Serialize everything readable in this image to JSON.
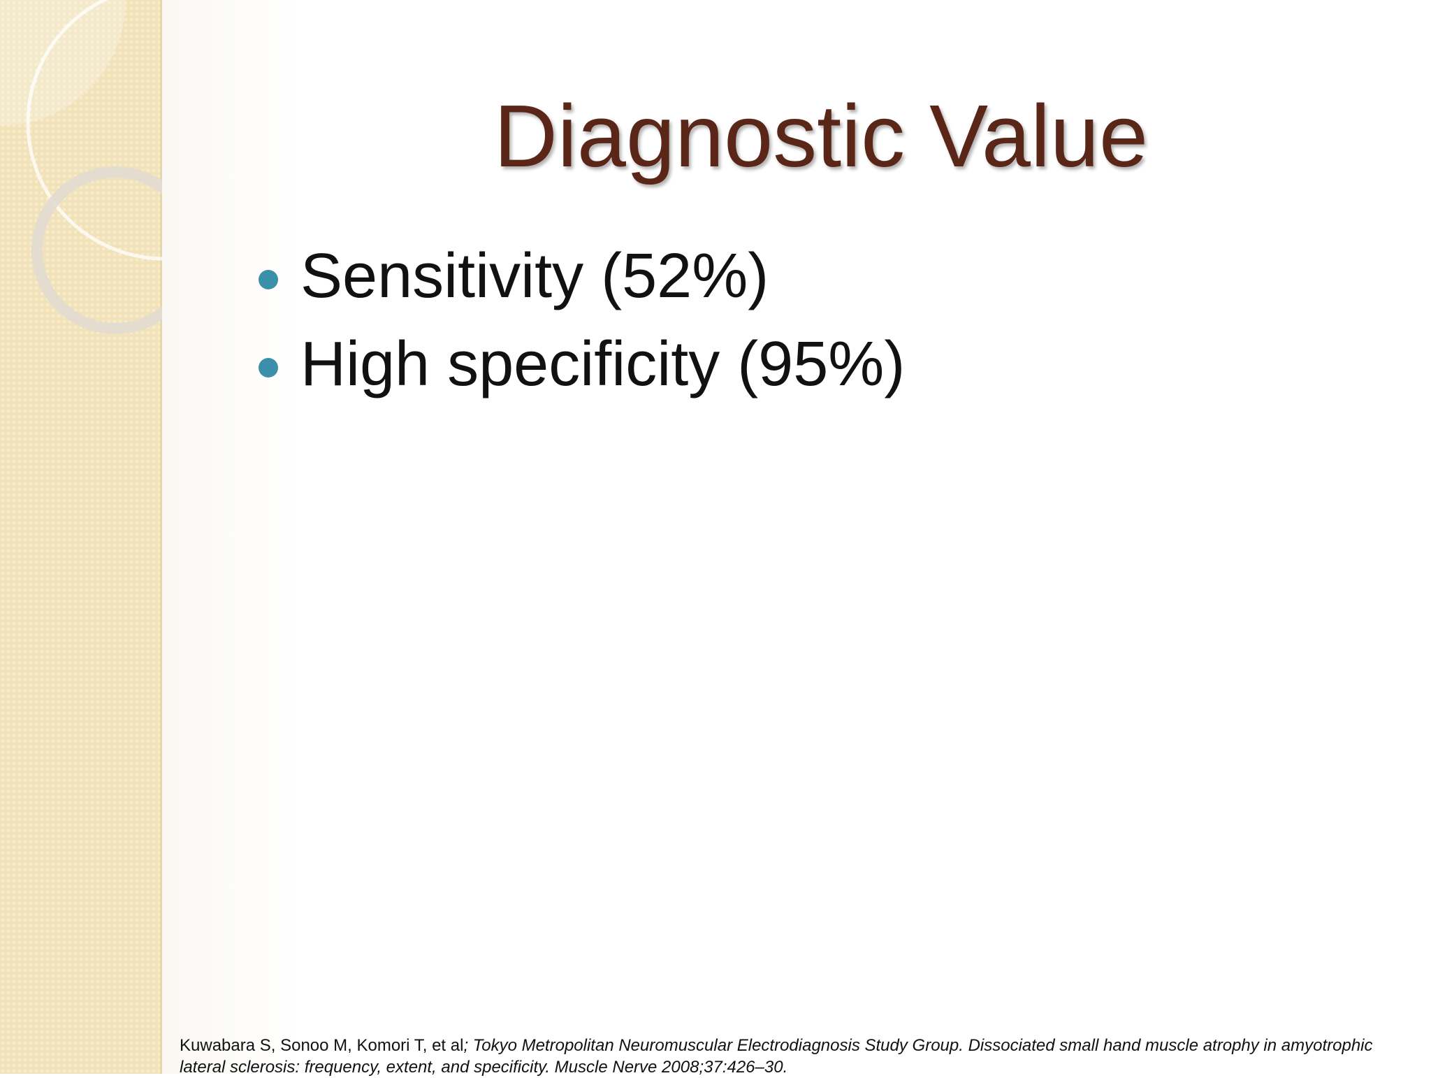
{
  "slide": {
    "title": "Diagnostic Value",
    "bullets": [
      "Sensitivity (52%)",
      "High specificity (95%)"
    ],
    "citation": {
      "authors": "Kuwabara S, Sonoo M, Komori T, et al",
      "reference": "; Tokyo Metropolitan Neuromuscular Electrodiagnosis Study Group. Dissociated small hand muscle atrophy in amyotrophic lateral sclerosis: frequency, extent, and specificity. Muscle Nerve 2008;37:426–30."
    }
  }
}
